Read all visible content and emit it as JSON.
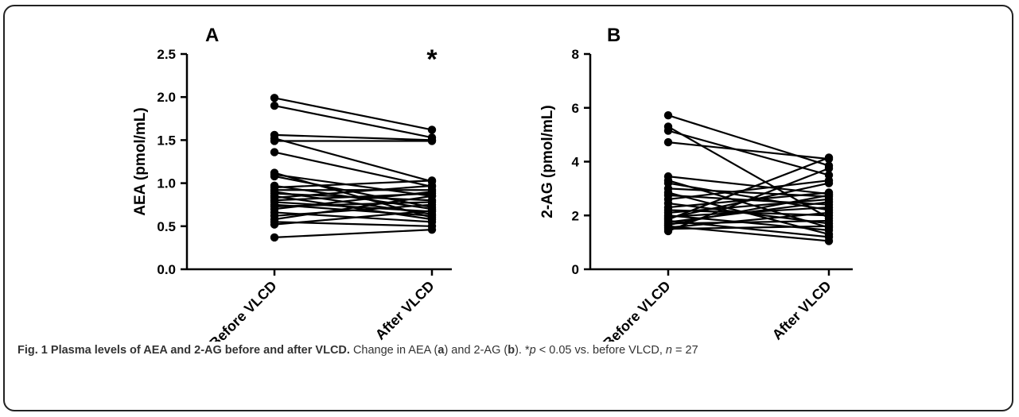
{
  "caption": {
    "title": "Fig. 1 Plasma levels of AEA and 2-AG before and after VLCD.",
    "text_1": "Change in AEA (",
    "letter_a": "a",
    "text_2": ") and 2-AG (",
    "letter_b": "b",
    "text_3": "). *",
    "p_symbol": "p",
    "text_4": " < 0.05 vs. before VLCD, ",
    "n_symbol": "n",
    "text_5": " = 27"
  },
  "chart_data": [
    {
      "type": "line",
      "panel": "A",
      "ylabel": "AEA (pmol/mL)",
      "categories": [
        "Before VLCD",
        "After VLCD"
      ],
      "ylim": [
        0,
        2.5
      ],
      "yticks": [
        "0.0",
        "0.5",
        "1.0",
        "1.5",
        "2.0",
        "2.5"
      ],
      "significance": "*",
      "pairs": [
        [
          1.99,
          1.62
        ],
        [
          1.9,
          1.53
        ],
        [
          1.56,
          1.5
        ],
        [
          1.49,
          1.49
        ],
        [
          1.52,
          1.02
        ],
        [
          1.36,
          0.96
        ],
        [
          1.12,
          0.6
        ],
        [
          1.1,
          0.85
        ],
        [
          1.08,
          0.72
        ],
        [
          0.97,
          0.7
        ],
        [
          0.95,
          1.03
        ],
        [
          0.92,
          0.92
        ],
        [
          0.9,
          0.64
        ],
        [
          0.88,
          0.8
        ],
        [
          0.85,
          0.58
        ],
        [
          0.83,
          0.97
        ],
        [
          0.8,
          0.88
        ],
        [
          0.78,
          0.67
        ],
        [
          0.75,
          0.62
        ],
        [
          0.73,
          0.78
        ],
        [
          0.7,
          0.9
        ],
        [
          0.66,
          0.55
        ],
        [
          0.62,
          0.75
        ],
        [
          0.58,
          0.85
        ],
        [
          0.55,
          0.5
        ],
        [
          0.52,
          0.68
        ],
        [
          0.37,
          0.46
        ]
      ]
    },
    {
      "type": "line",
      "panel": "B",
      "ylabel": "2-AG (pmol/mL)",
      "categories": [
        "Before VLCD",
        "After VLCD"
      ],
      "ylim": [
        0,
        8
      ],
      "yticks": [
        "0",
        "2",
        "4",
        "6",
        "8"
      ],
      "pairs": [
        [
          5.72,
          3.85
        ],
        [
          5.3,
          1.9
        ],
        [
          5.15,
          3.5
        ],
        [
          4.72,
          4.1
        ],
        [
          3.45,
          2.8
        ],
        [
          3.3,
          1.55
        ],
        [
          3.2,
          2.2
        ],
        [
          3.0,
          2.7
        ],
        [
          2.85,
          1.3
        ],
        [
          2.75,
          2.4
        ],
        [
          2.6,
          3.3
        ],
        [
          2.45,
          1.7
        ],
        [
          2.3,
          2.85
        ],
        [
          2.2,
          2.0
        ],
        [
          2.1,
          2.6
        ],
        [
          2.0,
          1.45
        ],
        [
          1.95,
          2.3
        ],
        [
          1.9,
          3.2
        ],
        [
          1.85,
          4.15
        ],
        [
          1.8,
          1.2
        ],
        [
          1.75,
          2.5
        ],
        [
          1.7,
          1.8
        ],
        [
          1.65,
          2.75
        ],
        [
          1.6,
          1.05
        ],
        [
          1.55,
          2.1
        ],
        [
          1.5,
          1.6
        ],
        [
          1.42,
          3.75
        ]
      ]
    }
  ]
}
